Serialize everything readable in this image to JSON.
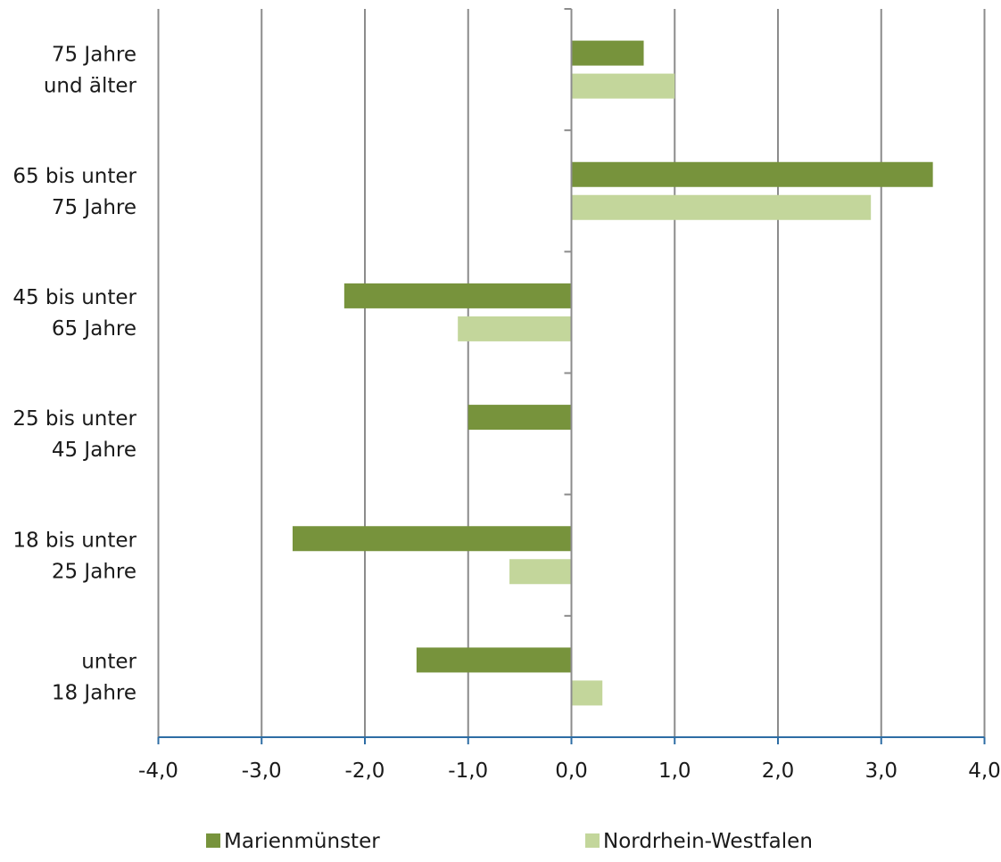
{
  "chart_data": {
    "type": "bar",
    "orientation": "horizontal",
    "categories": [
      [
        "75 Jahre",
        "und älter"
      ],
      [
        "65 bis unter",
        "75 Jahre"
      ],
      [
        "45 bis unter",
        "65 Jahre"
      ],
      [
        "25 bis unter",
        "45 Jahre"
      ],
      [
        "18 bis unter",
        "25 Jahre"
      ],
      [
        "unter",
        "18 Jahre"
      ]
    ],
    "series": [
      {
        "name": "Marienmünster",
        "color": "#77933c",
        "values": [
          0.7,
          3.5,
          -2.2,
          -1.0,
          -2.7,
          -1.5
        ]
      },
      {
        "name": "Nordrhein-Westfalen",
        "color": "#c3d69b",
        "values": [
          1.0,
          2.9,
          -1.1,
          0.0,
          -0.6,
          0.3
        ]
      }
    ],
    "xlim": [
      -4,
      4
    ],
    "xticks": [
      -4,
      -3,
      -2,
      -1,
      0,
      1,
      2,
      3,
      4
    ],
    "xtick_labels": [
      "-4,0",
      "-3,0",
      "-2,0",
      "-1,0",
      "0,0",
      "1,0",
      "2,0",
      "3,0",
      "4,0"
    ],
    "title": "",
    "xlabel": "",
    "ylabel": "",
    "grid": "vertical",
    "legend_position": "bottom",
    "colors": {
      "grid": "#8c8c8c",
      "axis": "#2e6da4",
      "category_axis": "#8c8c8c"
    }
  }
}
